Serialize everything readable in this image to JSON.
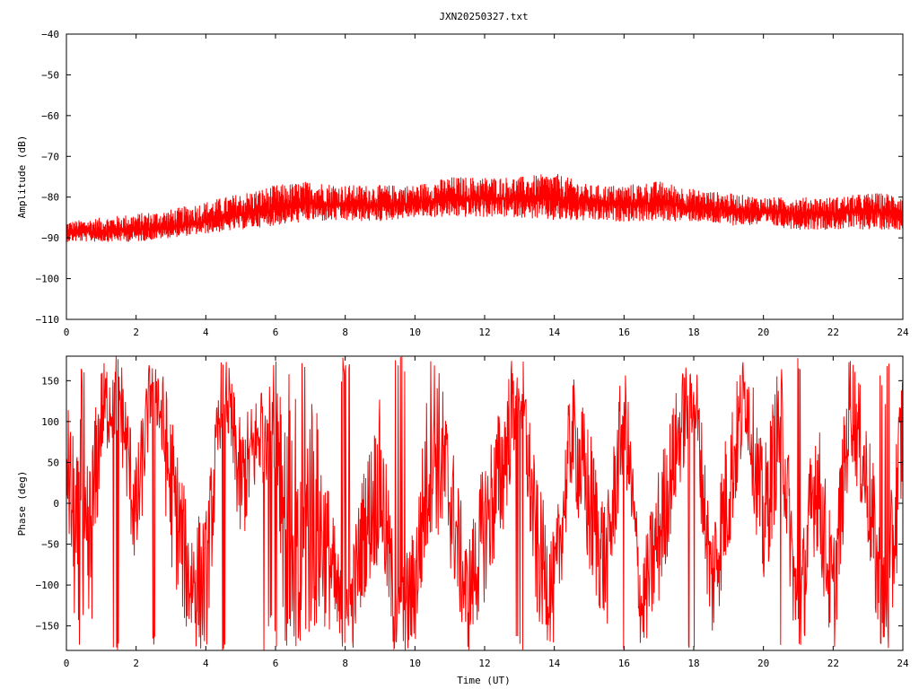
{
  "title": "JXN20250327.txt",
  "colors": {
    "series": "#ff0000",
    "axis": "#000000",
    "grid": "#a0a0a0",
    "background": "#ffffff"
  },
  "chart_data": [
    {
      "id": "amplitude",
      "type": "line",
      "xlabel": "",
      "ylabel": "Amplitude (dB)",
      "xlim": [
        0,
        24
      ],
      "ylim": [
        -110,
        -40
      ],
      "xticks": [
        "0",
        "2",
        "4",
        "6",
        "8",
        "10",
        "12",
        "14",
        "16",
        "18",
        "20",
        "22",
        "24"
      ],
      "yticks": [
        "-40",
        "-50",
        "-60",
        "-70",
        "-80",
        "-90",
        "-100",
        "-110"
      ],
      "grid": false,
      "series": [
        {
          "x": [
            0,
            1,
            2,
            3,
            4,
            5,
            6,
            7,
            8,
            9,
            10,
            11,
            12,
            13,
            14,
            15,
            16,
            17,
            18,
            19,
            20,
            21,
            22,
            23,
            24
          ],
          "y_low": [
            -91,
            -91,
            -91,
            -90,
            -89,
            -88,
            -87,
            -86,
            -86,
            -86,
            -85,
            -85,
            -85,
            -85,
            -86,
            -86,
            -86,
            -86,
            -86,
            -87,
            -87,
            -88,
            -88,
            -88,
            -88
          ],
          "y_mean": [
            -88.5,
            -88.5,
            -88,
            -87.5,
            -86,
            -84.5,
            -83,
            -81.5,
            -82,
            -82,
            -81.5,
            -80.5,
            -80.5,
            -80.5,
            -80.5,
            -81.5,
            -82,
            -81.5,
            -82.5,
            -83,
            -83.5,
            -84,
            -84,
            -83.5,
            -84
          ],
          "y_high": [
            -86,
            -85,
            -84,
            -83,
            -81,
            -79,
            -77,
            -76,
            -77,
            -77,
            -77,
            -75,
            -75,
            -75,
            -74,
            -77,
            -77,
            -76,
            -78,
            -79,
            -80,
            -80,
            -80,
            -79,
            -79
          ]
        }
      ]
    },
    {
      "id": "phase",
      "type": "line",
      "xlabel": "Time (UT)",
      "ylabel": "Phase (deg)",
      "xlim": [
        0,
        24
      ],
      "ylim": [
        -180,
        180
      ],
      "xticks": [
        "0",
        "2",
        "4",
        "6",
        "8",
        "10",
        "12",
        "14",
        "16",
        "18",
        "20",
        "22",
        "24"
      ],
      "yticks": [
        "150",
        "100",
        "50",
        "0",
        "-50",
        "-100",
        "-150"
      ],
      "grid": false,
      "series": [
        {
          "x": [
            0,
            0.5,
            1,
            1.5,
            2,
            2.5,
            3,
            3.5,
            4,
            4.5,
            5,
            5.5,
            6,
            6.5,
            7,
            7.5,
            8,
            8.5,
            9,
            9.5,
            10,
            10.5,
            11,
            11.5,
            12,
            12.5,
            13,
            13.5,
            14,
            14.5,
            15,
            15.5,
            16,
            16.5,
            17,
            17.5,
            18,
            18.5,
            19,
            19.5,
            20,
            20.5,
            21,
            21.5,
            22,
            22.5,
            23,
            23.5,
            24
          ],
          "y": [
            60,
            -150,
            110,
            140,
            -20,
            170,
            20,
            -90,
            -100,
            160,
            20,
            80,
            150,
            -170,
            0,
            -60,
            -170,
            -40,
            30,
            -160,
            -100,
            90,
            10,
            -120,
            -30,
            40,
            160,
            -60,
            -110,
            90,
            0,
            -80,
            120,
            -130,
            -40,
            70,
            150,
            -100,
            20,
            140,
            -30,
            110,
            -160,
            40,
            -120,
            130,
            20,
            -170,
            100
          ],
          "jitter": [
            70,
            170,
            60,
            60,
            80,
            40,
            100,
            80,
            90,
            40,
            80,
            60,
            120,
            170,
            170,
            90,
            60,
            80,
            100,
            60,
            80,
            120,
            90,
            70,
            90,
            90,
            60,
            90,
            70,
            70,
            100,
            80,
            70,
            60,
            90,
            70,
            60,
            80,
            90,
            60,
            90,
            80,
            70,
            90,
            80,
            70,
            80,
            100,
            90
          ]
        }
      ]
    }
  ]
}
